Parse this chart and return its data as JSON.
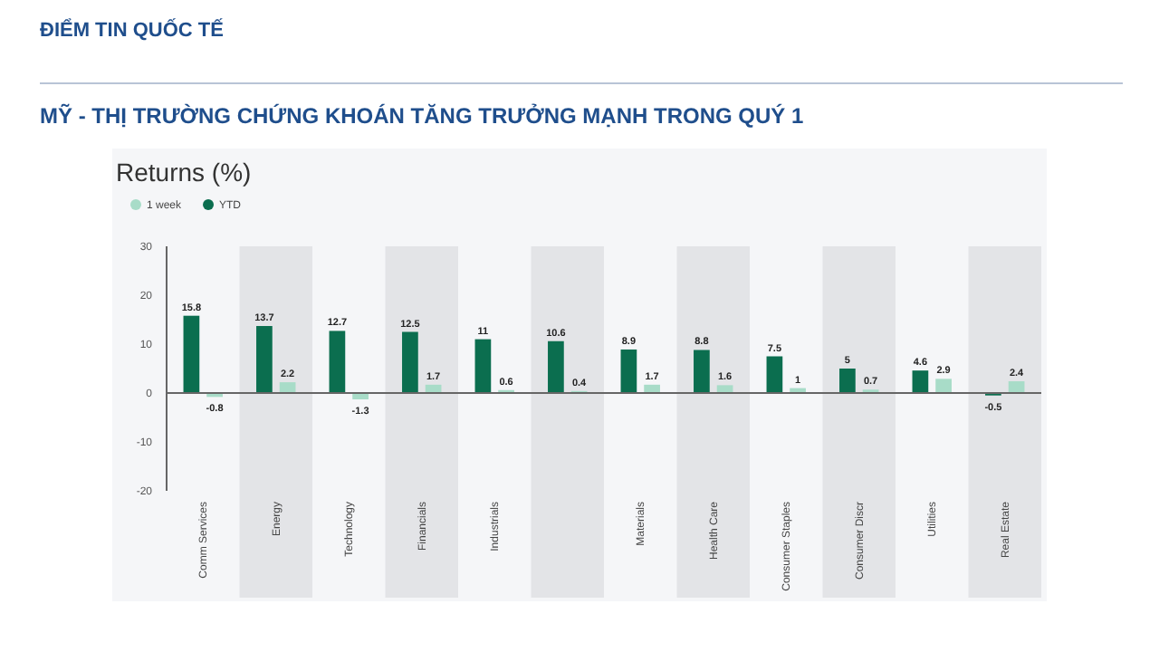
{
  "chart_data": {
    "type": "bar",
    "title": "MỸ - THỊ TRƯỜNG CHỨNG KHOÁN TĂNG TRƯỞNG MẠNH TRONG QUÝ 1",
    "subtitle": "Returns (%)",
    "annotations": [
      "ĐIỂM TIN QUỐC TẾ"
    ],
    "categories": [
      "Comm Services",
      "Energy",
      "Technology",
      "Financials",
      "Industrials",
      null,
      "Materials",
      "Health Care",
      "Consumer Staples",
      "Consumer Discr",
      "Utilities",
      "Real Estate"
    ],
    "series": [
      {
        "name": "1 week",
        "color": "#a8dcc8",
        "values": [
          -0.8,
          2.2,
          -1.3,
          1.7,
          0.6,
          0.4,
          1.7,
          1.6,
          1,
          0.7,
          2.9,
          2.4
        ]
      },
      {
        "name": "YTD",
        "color": "#0b6e4f",
        "values": [
          15.8,
          13.7,
          12.7,
          12.5,
          11,
          10.6,
          8.9,
          8.8,
          7.5,
          5,
          4.6,
          -0.5
        ]
      }
    ],
    "ylim": [
      -20,
      30
    ],
    "yticks": [
      -20,
      -10,
      0,
      10,
      20,
      30
    ],
    "data_labels": true,
    "legend": "top left"
  }
}
